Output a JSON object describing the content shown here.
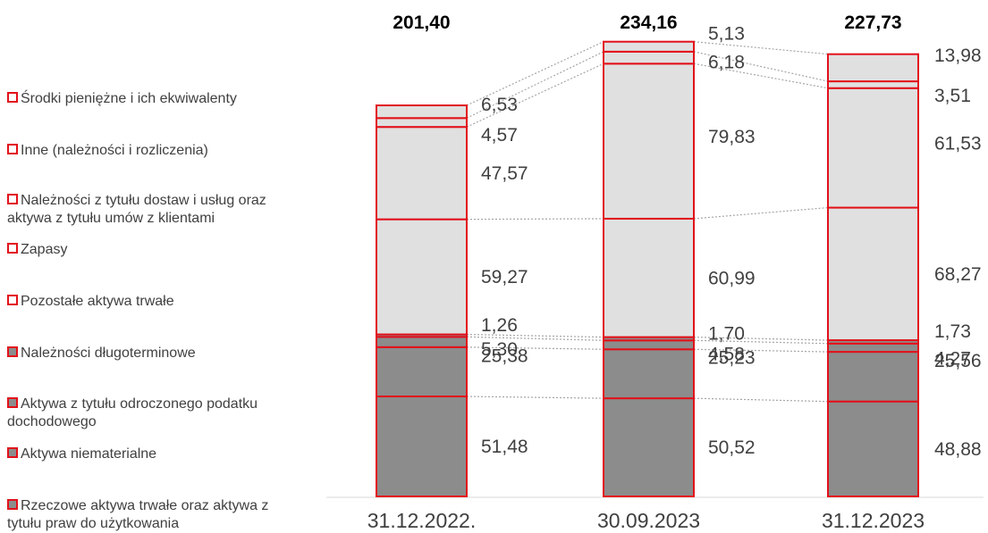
{
  "chart_data": {
    "type": "bar",
    "stacked": true,
    "categories": [
      "31.12.2022.",
      "30.09.2023",
      "31.12.2023"
    ],
    "totals": [
      "201,40",
      "234,16",
      "227,73"
    ],
    "series": [
      {
        "name": "Rzeczowe aktywa trwałe oraz aktywa z tytułu praw do użytkowania",
        "values": [
          51.48,
          50.52,
          48.88
        ],
        "labels": [
          "51,48",
          "50,52",
          "48,88"
        ],
        "fill": "#8c8c8c"
      },
      {
        "name": "Aktywa niematerialne",
        "values": [
          25.38,
          25.23,
          25.56
        ],
        "labels": [
          "25,38",
          "25,23",
          "25,56"
        ],
        "fill": "#8c8c8c"
      },
      {
        "name": "Aktywa z tytułu odroczonego podatku dochodowego",
        "values": [
          5.3,
          4.58,
          4.27
        ],
        "labels": [
          "5,30",
          "4,58",
          "4,27"
        ],
        "fill": "#8c8c8c"
      },
      {
        "name": "Należności długoterminowe",
        "values": [
          1.26,
          1.7,
          1.73
        ],
        "labels": [
          "1,26",
          "1,70",
          "1,73"
        ],
        "fill": "#8c8c8c"
      },
      {
        "name": "Pozostałe aktywa trwałe",
        "values": [
          59.27,
          60.99,
          68.27
        ],
        "labels": [
          "59,27",
          "60,99",
          "68,27"
        ],
        "fill": "#e0e0e0"
      },
      {
        "name": "Zapasy",
        "values": [
          47.57,
          79.83,
          61.53
        ],
        "labels": [
          "47,57",
          "79,83",
          "61,53"
        ],
        "fill": "#e0e0e0"
      },
      {
        "name": "Należności z tytułu dostaw i usług oraz aktywa z tytułu umów z klientami",
        "values": [
          4.57,
          6.18,
          3.51
        ],
        "labels": [
          "4,57",
          "6,18",
          "3,51"
        ],
        "fill": "#e0e0e0"
      },
      {
        "name": "Inne (należności i rozliczenia)",
        "values": [
          6.53,
          5.13,
          13.98
        ],
        "labels": [
          "6,53",
          "5,13",
          "13,98"
        ],
        "fill": "#e0e0e0"
      }
    ],
    "colors": {
      "outline": "#e2101a",
      "dark_fill": "#8c8c8c",
      "light_fill": "#e0e0e0",
      "connector": "#a6a6a6",
      "text": "#404040"
    },
    "legend_position": "left"
  },
  "legend": [
    {
      "lines": [
        "Środki pieniężne i ich ekwiwalenty"
      ],
      "swatch": "light"
    },
    {
      "lines": [
        "Inne (należności i rozliczenia)"
      ],
      "swatch": "light"
    },
    {
      "lines": [
        "Należności z tytułu dostaw i usług oraz",
        "aktywa z tytułu umów z klientami"
      ],
      "swatch": "light"
    },
    {
      "lines": [
        "Zapasy"
      ],
      "swatch": "light"
    },
    {
      "lines": [
        "Pozostałe aktywa trwałe"
      ],
      "swatch": "light"
    },
    {
      "lines": [
        "Należności długoterminowe"
      ],
      "swatch": "dark"
    },
    {
      "lines": [
        "Aktywa z tytułu odroczonego podatku",
        "dochodowego"
      ],
      "swatch": "dark"
    },
    {
      "lines": [
        "Aktywa niematerialne"
      ],
      "swatch": "dark"
    },
    {
      "lines": [
        "Rzeczowe aktywa trwałe oraz aktywa z",
        "tytułu praw do użytkowania"
      ],
      "swatch": "dark"
    }
  ]
}
